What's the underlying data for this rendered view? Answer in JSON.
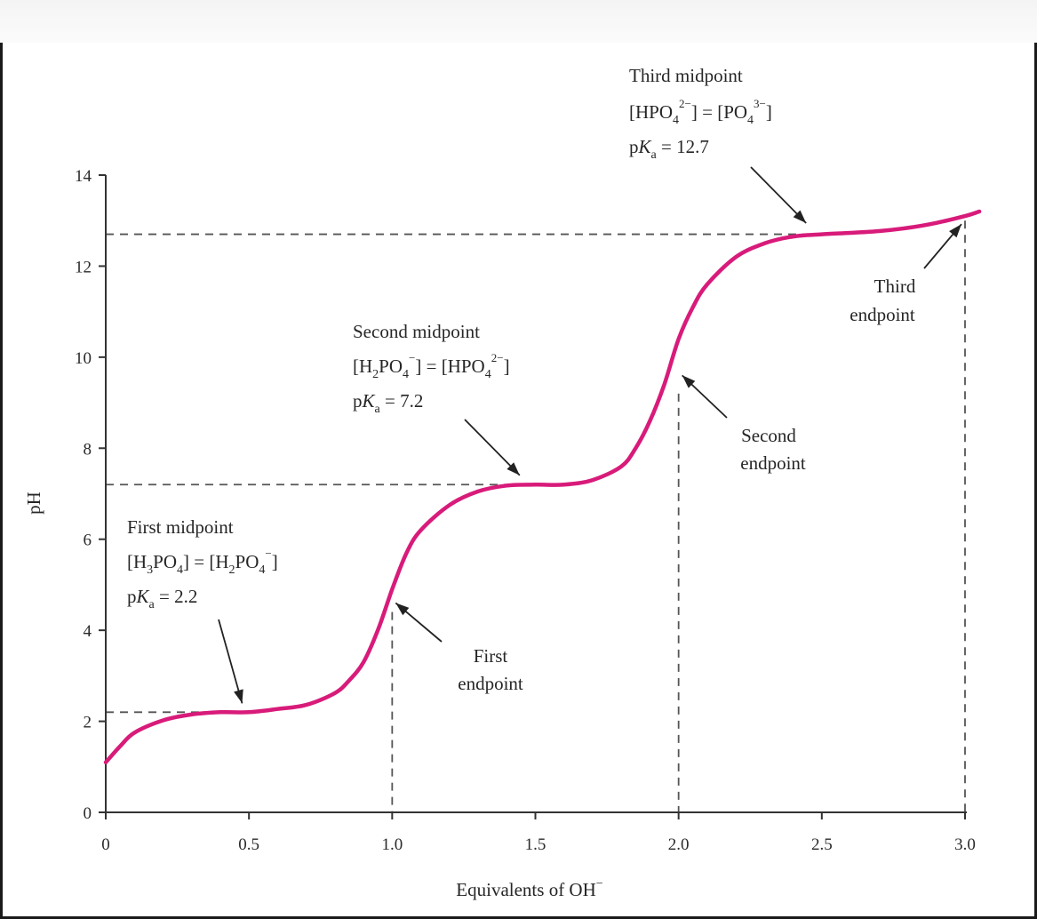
{
  "chart_data": {
    "type": "line",
    "title": "",
    "xlabel": "Equivalents of OH",
    "xlabel_charge": "−",
    "ylabel": "pH",
    "xlim": [
      0,
      3.0
    ],
    "ylim": [
      0,
      14
    ],
    "xticks": [
      "0",
      "0.5",
      "1.0",
      "1.5",
      "2.0",
      "2.5",
      "3.0"
    ],
    "yticks": [
      "0",
      "2",
      "4",
      "6",
      "8",
      "10",
      "12",
      "14"
    ],
    "grid": false,
    "colors": {
      "curve": "#d81b7a",
      "guides": "#555555",
      "axis": "#333333"
    },
    "curve": {
      "x": [
        0,
        0.05,
        0.1,
        0.2,
        0.3,
        0.4,
        0.5,
        0.6,
        0.7,
        0.8,
        0.85,
        0.9,
        0.95,
        1.0,
        1.05,
        1.1,
        1.2,
        1.3,
        1.4,
        1.5,
        1.6,
        1.7,
        1.8,
        1.85,
        1.9,
        1.95,
        2.0,
        2.05,
        2.1,
        2.2,
        2.3,
        2.4,
        2.5,
        2.6,
        2.7,
        2.8,
        2.9,
        3.0,
        3.05
      ],
      "y": [
        1.1,
        1.45,
        1.75,
        2.02,
        2.15,
        2.2,
        2.2,
        2.27,
        2.36,
        2.62,
        2.9,
        3.3,
        4.0,
        4.9,
        5.7,
        6.2,
        6.75,
        7.05,
        7.18,
        7.2,
        7.2,
        7.3,
        7.6,
        8.0,
        8.6,
        9.4,
        10.4,
        11.1,
        11.6,
        12.2,
        12.5,
        12.65,
        12.7,
        12.73,
        12.77,
        12.84,
        12.95,
        13.1,
        13.2
      ]
    },
    "midpoint_guides": [
      {
        "x": 0.5,
        "pH": 2.2
      },
      {
        "x": 1.5,
        "pH": 7.2
      },
      {
        "x": 2.5,
        "pH": 12.7
      }
    ],
    "endpoint_guides": [
      1.0,
      2.0,
      3.0
    ],
    "annotations": {
      "first_midpoint": {
        "title": "First midpoint",
        "eq_left": "[H",
        "eq_left_sub": "3",
        "eq_left_rest": "PO",
        "eq_left_sub2": "4",
        "eq_left_close": "]",
        "eq_mid": " = [H",
        "eq_mid_sub": "2",
        "eq_mid_rest": "PO",
        "eq_mid_sub2": "4",
        "eq_charge": "−",
        "eq_close": "]",
        "pka_prefix": "p",
        "pka_k": "K",
        "pka_sub": "a",
        "pka_value": " = 2.2",
        "target_x": 0.47,
        "target_pH": 2.2
      },
      "second_midpoint": {
        "title": "Second midpoint",
        "eq_left": "[H",
        "eq_left_sub": "2",
        "eq_left_rest": "PO",
        "eq_left_sub2": "4",
        "eq_left_charge": "−",
        "eq_mid": "] = [HPO",
        "eq_mid_sub": "4",
        "eq_charge": "2−",
        "eq_close": "]",
        "pka_prefix": "p",
        "pka_k": "K",
        "pka_sub": "a",
        "pka_value": " = 7.2",
        "target_x": 1.47,
        "target_pH": 7.25
      },
      "third_midpoint": {
        "title": "Third midpoint",
        "eq_left": "[HPO",
        "eq_left_sub": "4",
        "eq_left_charge": "2−",
        "eq_mid": "] = [PO",
        "eq_mid_sub": "4",
        "eq_charge": "3−",
        "eq_close": "]",
        "pka_prefix": "p",
        "pka_k": "K",
        "pka_sub": "a",
        "pka_value": " = 12.7",
        "target_x": 2.47,
        "target_pH": 12.75
      },
      "first_endpoint": {
        "line1": "First",
        "line2": "endpoint",
        "target_x": 1.0,
        "target_pH": 4.6
      },
      "second_endpoint": {
        "line1": "Second",
        "line2": "endpoint",
        "target_x": 2.0,
        "target_pH": 9.6
      },
      "third_endpoint": {
        "line1": "Third",
        "line2": "endpoint",
        "target_x": 3.0,
        "target_pH": 13.0
      }
    }
  }
}
